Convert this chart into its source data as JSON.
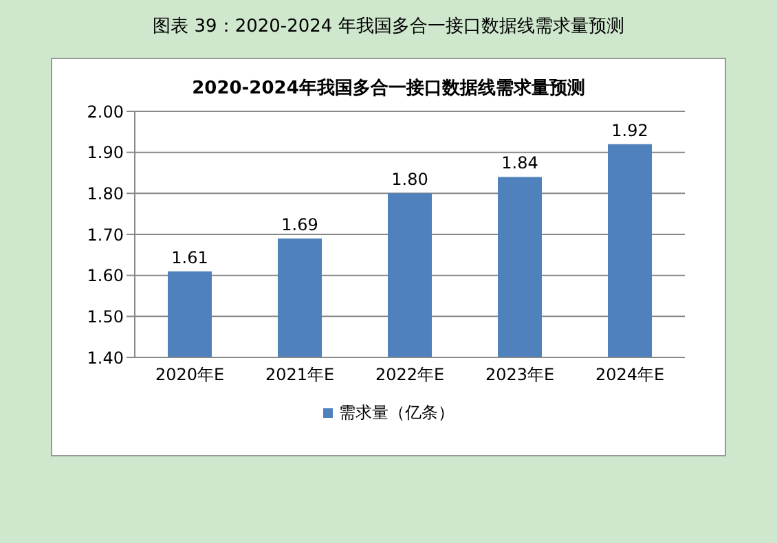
{
  "chart_data": {
    "type": "bar",
    "subtitle": "图表 39：2020-2024 年我国多合一接口数据线需求量预测",
    "title": "2020-2024年我国多合一接口数据线需求量预测",
    "categories": [
      "2020年E",
      "2021年E",
      "2022年E",
      "2023年E",
      "2024年E"
    ],
    "series": [
      {
        "name": "需求量（亿条）",
        "color": "#4f81bd",
        "values": [
          1.61,
          1.69,
          1.8,
          1.84,
          1.92
        ],
        "value_labels": [
          "1.61",
          "1.69",
          "1.80",
          "1.84",
          "1.92"
        ]
      }
    ],
    "ylim": [
      1.4,
      2.0
    ],
    "yticks": [
      {
        "value": 1.4,
        "label": "1.40"
      },
      {
        "value": 1.5,
        "label": "1.50"
      },
      {
        "value": 1.6,
        "label": "1.60"
      },
      {
        "value": 1.7,
        "label": "1.70"
      },
      {
        "value": 1.8,
        "label": "1.80"
      },
      {
        "value": 1.9,
        "label": "1.90"
      },
      {
        "value": 2.0,
        "label": "2.00"
      }
    ],
    "grid": "y",
    "legend": "bottom"
  }
}
